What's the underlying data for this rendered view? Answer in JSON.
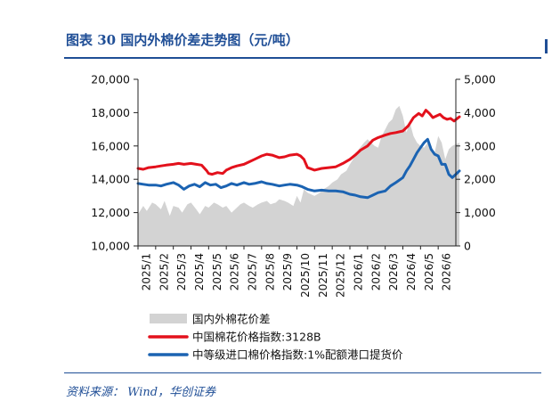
{
  "header": {
    "title": "图表 30   国内外棉价差走势图（元/吨）"
  },
  "footer": {
    "source": "资料来源： Wind，华创证券"
  },
  "chart_data": {
    "type": "line",
    "title": "国内外棉价差走势图（元/吨）",
    "x_ticks": [
      "2025/1",
      "2025/2",
      "2025/3",
      "2025/4",
      "2025/5",
      "2025/6",
      "2025/7",
      "2025/8",
      "2025/9",
      "2025/10",
      "2025/11",
      "2025/12",
      "2026/1",
      "2026/2",
      "2026/3",
      "2026/4",
      "2026/5",
      "2026/6"
    ],
    "y_left": {
      "ticks": [
        "10,000",
        "12,000",
        "14,000",
        "16,000",
        "18,000",
        "20,000"
      ],
      "min": 10000,
      "max": 20000
    },
    "y_right": {
      "ticks": [
        "0",
        "1,000",
        "2,000",
        "3,000",
        "4,000",
        "5,000"
      ],
      "min": 0,
      "max": 5000
    },
    "legend_position": "bottom",
    "grid": false,
    "series": [
      {
        "name": "国内外棉花价差",
        "type": "area",
        "axis": "right",
        "color": "#d3d3d3",
        "x": [
          0,
          0.3,
          0.5,
          0.8,
          1,
          1.3,
          1.5,
          1.8,
          2,
          2.3,
          2.5,
          2.8,
          3,
          3.3,
          3.5,
          3.8,
          4,
          4.3,
          4.5,
          4.8,
          5,
          5.3,
          5.5,
          5.8,
          6,
          6.3,
          6.5,
          6.8,
          7,
          7.3,
          7.5,
          7.8,
          8,
          8.3,
          8.5,
          8.8,
          9,
          9.2,
          9.4,
          9.6,
          10,
          10.3,
          10.5,
          10.8,
          11,
          11.3,
          11.5,
          11.8,
          12,
          12.3,
          12.5,
          12.8,
          13,
          13.2,
          13.4,
          13.6,
          13.8,
          14,
          14.2,
          14.4,
          14.6,
          14.8,
          15,
          15.2,
          15.4,
          15.6,
          15.8,
          16,
          16.2,
          16.4,
          16.6,
          16.8,
          17,
          17.2,
          17.4,
          17.6,
          17.8,
          18.2
        ],
        "values": [
          950,
          1200,
          1050,
          1300,
          1250,
          1100,
          1350,
          900,
          1200,
          1150,
          1000,
          1250,
          1300,
          1100,
          950,
          1200,
          1150,
          1300,
          1250,
          1150,
          1200,
          1000,
          1100,
          1250,
          1300,
          1200,
          1150,
          1250,
          1300,
          1350,
          1250,
          1300,
          1400,
          1350,
          1300,
          1200,
          1500,
          1300,
          1700,
          1600,
          1500,
          1600,
          1700,
          1800,
          1900,
          2000,
          2150,
          2250,
          2450,
          2700,
          2900,
          3100,
          3200,
          3100,
          3000,
          2950,
          3300,
          3500,
          3700,
          3800,
          4100,
          4200,
          3900,
          3400,
          3700,
          3300,
          3100,
          3000,
          2950,
          3100,
          2900,
          2800,
          3300,
          3100,
          2600,
          2900,
          3000,
          3100
        ]
      },
      {
        "name": "中国棉花价格指数:3128B",
        "axis": "left",
        "color": "#e3111c",
        "x": [
          0,
          0.3,
          0.6,
          1,
          1.3,
          1.6,
          2,
          2.3,
          2.6,
          3,
          3.3,
          3.6,
          3.9,
          4,
          4.2,
          4.5,
          4.8,
          5,
          5.3,
          5.6,
          6,
          6.3,
          6.6,
          7,
          7.3,
          7.6,
          8,
          8.3,
          8.6,
          9,
          9.2,
          9.4,
          9.6,
          10,
          10.4,
          10.8,
          11.2,
          11.6,
          12,
          12.3,
          12.6,
          13,
          13.3,
          13.6,
          14,
          14.3,
          14.6,
          15,
          15.3,
          15.6,
          15.9,
          16.1,
          16.3,
          16.5,
          16.7,
          16.9,
          17.1,
          17.3,
          17.5,
          17.7,
          17.9,
          18.2
        ],
        "values": [
          14650,
          14600,
          14700,
          14750,
          14800,
          14850,
          14900,
          14950,
          14900,
          14950,
          14900,
          14850,
          14500,
          14350,
          14300,
          14400,
          14350,
          14550,
          14700,
          14800,
          14900,
          15050,
          15200,
          15400,
          15500,
          15450,
          15300,
          15350,
          15450,
          15500,
          15400,
          15200,
          14700,
          14550,
          14650,
          14700,
          14750,
          14950,
          15200,
          15450,
          15750,
          16000,
          16350,
          16500,
          16650,
          16750,
          16800,
          16900,
          17200,
          17700,
          17950,
          17800,
          18150,
          17950,
          17700,
          17800,
          17900,
          17700,
          17600,
          17650,
          17500,
          17750
        ]
      },
      {
        "name": "中等级进口棉价格指数:1%配额港口提货价",
        "axis": "left",
        "color": "#1b63b2",
        "x": [
          0,
          0.3,
          0.6,
          1,
          1.3,
          1.6,
          2,
          2.3,
          2.6,
          2.9,
          3.2,
          3.5,
          3.8,
          4.1,
          4.4,
          4.7,
          5,
          5.3,
          5.6,
          6,
          6.3,
          6.6,
          7,
          7.3,
          7.6,
          8,
          8.3,
          8.6,
          9,
          9.3,
          9.6,
          10,
          10.4,
          10.8,
          11.2,
          11.6,
          12,
          12.3,
          12.6,
          13,
          13.3,
          13.6,
          14,
          14.3,
          14.6,
          15,
          15.2,
          15.4,
          15.6,
          15.8,
          16,
          16.2,
          16.4,
          16.6,
          16.8,
          17,
          17.2,
          17.4,
          17.6,
          17.8,
          18,
          18.2
        ],
        "values": [
          13750,
          13700,
          13650,
          13650,
          13600,
          13700,
          13800,
          13650,
          13400,
          13600,
          13700,
          13550,
          13800,
          13650,
          13700,
          13500,
          13600,
          13750,
          13650,
          13800,
          13700,
          13750,
          13850,
          13750,
          13700,
          13600,
          13650,
          13700,
          13650,
          13550,
          13400,
          13300,
          13350,
          13300,
          13300,
          13250,
          13100,
          13050,
          12950,
          12900,
          13050,
          13200,
          13300,
          13600,
          13800,
          14100,
          14500,
          14800,
          15200,
          15600,
          15900,
          16200,
          16400,
          15800,
          15500,
          15400,
          14900,
          14900,
          14300,
          14100,
          14300,
          14500
        ]
      }
    ]
  }
}
